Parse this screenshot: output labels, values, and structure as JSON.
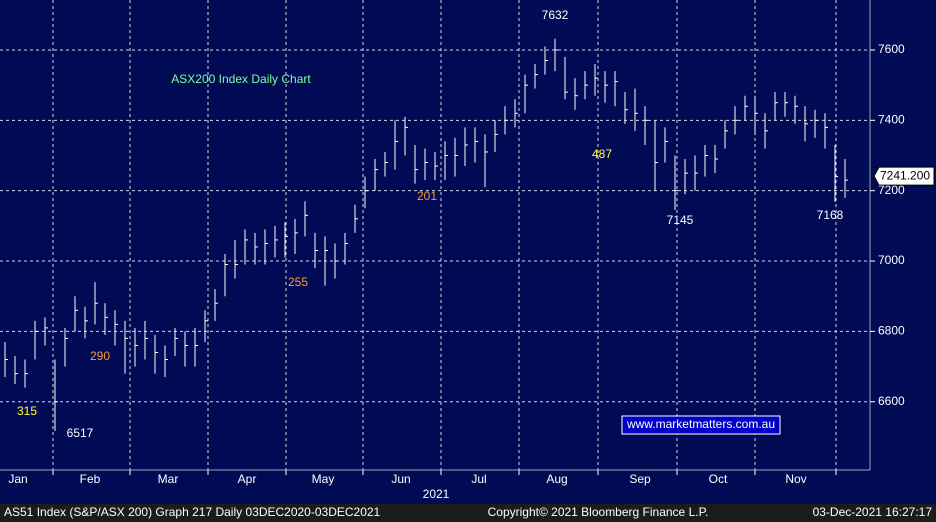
{
  "chart_data": {
    "type": "ohlc",
    "title": "ASX200 Index Daily Chart",
    "watermark": "www.marketmatters.com.au",
    "xlabel": "2021",
    "xlim": [
      -0.5,
      86.5
    ],
    "xticks": [
      {
        "value": 1.3,
        "label": "Jan"
      },
      {
        "value": 8.5,
        "label": "Feb"
      },
      {
        "value": 16.3,
        "label": "Mar"
      },
      {
        "value": 24.2,
        "label": "Apr"
      },
      {
        "value": 31.8,
        "label": "May"
      },
      {
        "value": 39.6,
        "label": "Jun"
      },
      {
        "value": 47.4,
        "label": "Jul"
      },
      {
        "value": 55.2,
        "label": "Aug"
      },
      {
        "value": 63.5,
        "label": "Sep"
      },
      {
        "value": 71.3,
        "label": "Oct"
      },
      {
        "value": 79.1,
        "label": "Nov"
      }
    ],
    "xgrid": [
      4.8,
      12.5,
      20.3,
      28.1,
      35.8,
      43.6,
      51.4,
      59.3,
      67.2,
      75,
      83.1
    ],
    "ylim": [
      6406,
      7742
    ],
    "yticks": [
      6600,
      6800,
      7000,
      7200,
      7400,
      7600
    ],
    "grid": true,
    "color": "#ffffff",
    "high": [
      6770,
      6730,
      6720,
      6830,
      6840,
      6720,
      6810,
      6900,
      6870,
      6940,
      6880,
      6860,
      6830,
      6810,
      6830,
      6790,
      6760,
      6810,
      6800,
      6810,
      6860,
      6920,
      7020,
      7060,
      7090,
      7080,
      7090,
      7100,
      7110,
      7120,
      7170,
      7080,
      7070,
      7050,
      7080,
      7160,
      7240,
      7290,
      7310,
      7400,
      7410,
      7330,
      7320,
      7310,
      7340,
      7350,
      7380,
      7380,
      7360,
      7400,
      7440,
      7460,
      7530,
      7560,
      7610,
      7632,
      7580,
      7520,
      7540,
      7560,
      7540,
      7540,
      7480,
      7490,
      7440,
      7400,
      7380,
      7300,
      7290,
      7300,
      7330,
      7330,
      7400,
      7440,
      7470,
      7470,
      7420,
      7480,
      7480,
      7470,
      7440,
      7430,
      7420,
      7330,
      7290
    ],
    "low": [
      6670,
      6650,
      6640,
      6720,
      6760,
      6517,
      6700,
      6800,
      6780,
      6820,
      6790,
      6760,
      6680,
      6700,
      6720,
      6680,
      6670,
      6730,
      6700,
      6700,
      6770,
      6830,
      6900,
      6950,
      6990,
      6990,
      6990,
      7010,
      7010,
      7020,
      7070,
      6980,
      6930,
      6950,
      6990,
      7080,
      7150,
      7200,
      7240,
      7260,
      7300,
      7220,
      7230,
      7230,
      7230,
      7240,
      7270,
      7280,
      7210,
      7310,
      7360,
      7380,
      7420,
      7490,
      7530,
      7540,
      7460,
      7430,
      7460,
      7470,
      7450,
      7440,
      7390,
      7370,
      7330,
      7200,
      7280,
      7145,
      7190,
      7200,
      7240,
      7250,
      7320,
      7360,
      7400,
      7360,
      7320,
      7400,
      7410,
      7390,
      7340,
      7350,
      7320,
      7168,
      7180
    ],
    "close": [
      6720,
      6680,
      6680,
      6800,
      6810,
      6600,
      6780,
      6860,
      6830,
      6880,
      6840,
      6820,
      6780,
      6760,
      6780,
      6740,
      6720,
      6780,
      6760,
      6760,
      6830,
      6880,
      6990,
      6990,
      7060,
      7040,
      7050,
      7060,
      7070,
      7080,
      7130,
      7030,
      7030,
      7000,
      7050,
      7120,
      7200,
      7260,
      7280,
      7340,
      7380,
      7260,
      7280,
      7270,
      7300,
      7300,
      7330,
      7340,
      7310,
      7360,
      7400,
      7420,
      7500,
      7530,
      7570,
      7600,
      7480,
      7470,
      7500,
      7520,
      7500,
      7510,
      7430,
      7420,
      7400,
      7280,
      7340,
      7200,
      7250,
      7250,
      7300,
      7290,
      7370,
      7400,
      7440,
      7420,
      7370,
      7450,
      7450,
      7440,
      7390,
      7400,
      7380,
      7240,
      7230
    ],
    "last": {
      "value": 7241.2,
      "label": "7241.200"
    },
    "annotations": [
      "7632",
      "6517",
      "7145",
      "7168",
      "315",
      "290",
      "255",
      "201",
      "487"
    ]
  },
  "footer": {
    "left": "AS51 Index (S&P/ASX 200) Graph 217  Daily 03DEC2020-03DEC2021",
    "center": "Copyright© 2021 Bloomberg Finance L.P.",
    "right": "03-Dec-2021 16:27:17"
  }
}
